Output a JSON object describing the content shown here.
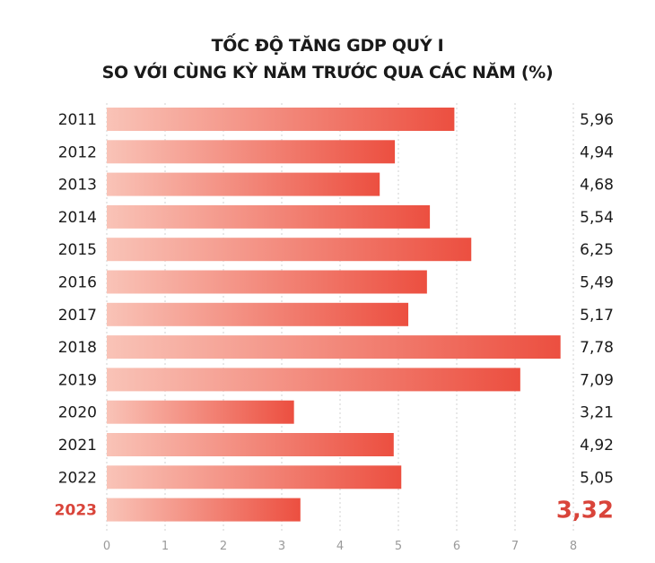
{
  "chart_data": {
    "type": "bar",
    "orientation": "horizontal",
    "title_lines": [
      "TỐC ĐỘ TĂNG GDP QUÝ I",
      "SO VỚI CÙNG KỲ NĂM TRƯỚC QUA CÁC NĂM (%)"
    ],
    "categories": [
      "2011",
      "2012",
      "2013",
      "2014",
      "2015",
      "2016",
      "2017",
      "2018",
      "2019",
      "2020",
      "2021",
      "2022",
      "2023"
    ],
    "values": [
      5.96,
      4.94,
      4.68,
      5.54,
      6.25,
      5.49,
      5.17,
      7.78,
      7.09,
      3.21,
      4.92,
      5.05,
      3.32
    ],
    "value_labels": [
      "5,96",
      "4,94",
      "4,68",
      "5,54",
      "6,25",
      "5,49",
      "5,17",
      "7,78",
      "7,09",
      "3,21",
      "4,92",
      "5,05",
      "3,32"
    ],
    "highlight_category": "2023",
    "xlim": [
      0,
      8
    ],
    "xticks": [
      "0",
      "1",
      "2",
      "3",
      "4",
      "5",
      "6",
      "7",
      "8"
    ],
    "grid": true,
    "colors": {
      "bar_start": "#f9c3b7",
      "bar_end": "#ec4f40",
      "highlight_text": "#d9443a",
      "grid": "#d0d0d0",
      "tick_text": "#9a9a9a"
    }
  }
}
